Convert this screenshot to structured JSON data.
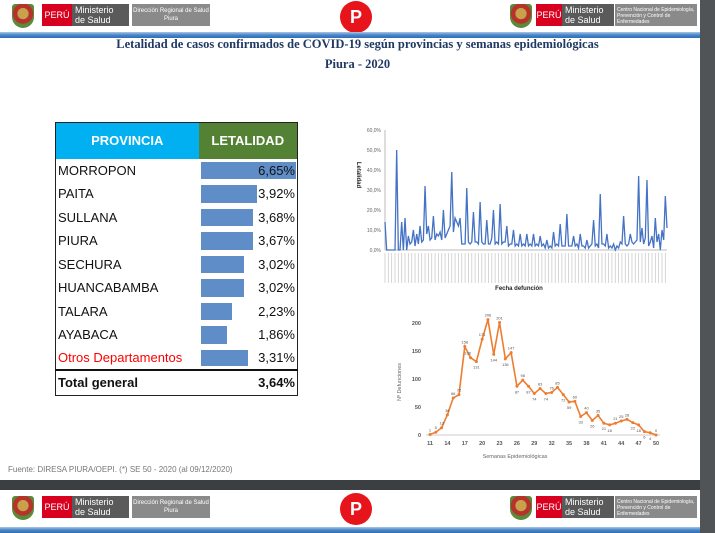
{
  "header": {
    "peru": "PERÚ",
    "ministerio": "Ministerio de Salud",
    "direccion": "Dirección Regional de Salud Piura",
    "cdc": "Centro Nacional de Epidemiología, Prevención y Control de Enfermedades"
  },
  "title": "Letalidad de casos confirmados de COVID-19 según provincias y semanas epidemiológicas",
  "subtitle": "Piura - 2020",
  "table": {
    "headers": [
      "PROVINCIA",
      "LETALIDAD"
    ],
    "rows": [
      {
        "name": "MORROPON",
        "value": "6,65%",
        "num": 6.65
      },
      {
        "name": "PAITA",
        "value": "3,92%",
        "num": 3.92
      },
      {
        "name": "SULLANA",
        "value": "3,68%",
        "num": 3.68
      },
      {
        "name": "PIURA",
        "value": "3,67%",
        "num": 3.67
      },
      {
        "name": "SECHURA",
        "value": "3,02%",
        "num": 3.02
      },
      {
        "name": "HUANCABAMBA",
        "value": "3,02%",
        "num": 3.02
      },
      {
        "name": "TALARA",
        "value": "2,23%",
        "num": 2.23
      },
      {
        "name": "AYABACA",
        "value": "1,86%",
        "num": 1.86
      },
      {
        "name": "Otros Departamentos",
        "value": "3,31%",
        "num": 3.31
      }
    ],
    "total_label": "Total general",
    "total_value": "3,64%"
  },
  "fuente": "Fuente: DIRESA PIURA/OEPI. (*) SE 50 - 2020 (al 09/12/2020)",
  "colors": {
    "line": "#4472c4",
    "orange": "#ed7d31",
    "otros": "#ff0000"
  },
  "chart_data": [
    {
      "type": "line",
      "ylabel": "Letalidad",
      "xlabel": "Fecha defunción",
      "ylim": [
        0,
        60
      ],
      "yticks": [
        "0,0%",
        "10,0%",
        "20,0%",
        "30,0%",
        "40,0%",
        "50,0%",
        "60,0%"
      ],
      "values": [
        14,
        0,
        0,
        0,
        0,
        0,
        0,
        50,
        0,
        0,
        14,
        0,
        16,
        0,
        7,
        3,
        4,
        10,
        2,
        8,
        3,
        12,
        4,
        5,
        32,
        8,
        12,
        5,
        6,
        17,
        5,
        8,
        7,
        9,
        5,
        20,
        6,
        8,
        10,
        12,
        39,
        9,
        16,
        14,
        12,
        16,
        3,
        3,
        3,
        31,
        4,
        3,
        4,
        19,
        4,
        4,
        3,
        24,
        4,
        3,
        3,
        15,
        3,
        3,
        6,
        20,
        3,
        4,
        3,
        23,
        3,
        4,
        4,
        12,
        2,
        3,
        3,
        10,
        2,
        3,
        2,
        8,
        2,
        3,
        2,
        8,
        2,
        3,
        2,
        8,
        2,
        3,
        2,
        7,
        2,
        3,
        1,
        5,
        1,
        2,
        1,
        9,
        2,
        3,
        2,
        13,
        2,
        2,
        2,
        18,
        2,
        2,
        2,
        7,
        2,
        3,
        1,
        8,
        2,
        2,
        1,
        5,
        1,
        2,
        3,
        15,
        2,
        3,
        1,
        28,
        3,
        3,
        2,
        8,
        1,
        2,
        1,
        3,
        0,
        2,
        1,
        4,
        3,
        17,
        3,
        2,
        3,
        8,
        4,
        3,
        4,
        5,
        37,
        4,
        11,
        3,
        6,
        35,
        2,
        4,
        7,
        1,
        16,
        4,
        8,
        0,
        10,
        5,
        27,
        11
      ]
    },
    {
      "type": "line",
      "ylabel": "Nº Defunciones",
      "xlabel": "Semanas Epidemiológicas",
      "ylim": [
        0,
        200
      ],
      "yticks": [
        0,
        50,
        100,
        150,
        200
      ],
      "xticks": [
        11,
        14,
        17,
        20,
        23,
        26,
        29,
        32,
        35,
        38,
        41,
        44,
        47,
        50
      ],
      "x": [
        11,
        12,
        13,
        14,
        15,
        16,
        17,
        18,
        19,
        20,
        21,
        22,
        23,
        24,
        25,
        26,
        27,
        28,
        29,
        30,
        31,
        32,
        33,
        34,
        35,
        36,
        37,
        38,
        39,
        40,
        41,
        42,
        43,
        44,
        45,
        46,
        47,
        48,
        49,
        50
      ],
      "values": [
        1,
        5,
        13,
        36,
        66,
        72,
        158,
        138,
        131,
        171,
        206,
        144,
        201,
        136,
        147,
        87,
        98,
        87,
        74,
        83,
        74,
        76,
        85,
        72,
        59,
        60,
        33,
        40,
        26,
        35,
        21,
        18,
        21,
        25,
        28,
        22,
        18,
        6,
        4,
        0
      ]
    }
  ]
}
